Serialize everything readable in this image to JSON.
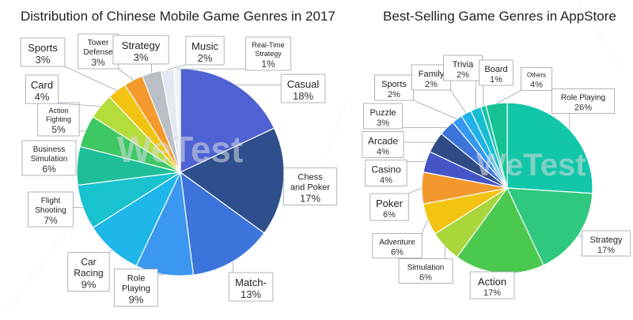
{
  "chart_data": [
    {
      "type": "pie",
      "title": "Distribution of Chinese Mobile Game Genres in 2017",
      "slices": [
        {
          "label": "Casual",
          "value": 18,
          "display": "18%",
          "color": "#4f62d3"
        },
        {
          "label": "Chess and Poker",
          "value": 17,
          "display": "17%",
          "color": "#2e4e8c"
        },
        {
          "label": "Match-",
          "value": 13,
          "display": "13%",
          "color": "#3d74dc"
        },
        {
          "label": "Role Playing",
          "value": 9,
          "display": "9%",
          "color": "#3b97f0"
        },
        {
          "label": "Car Racing",
          "value": 9,
          "display": "9%",
          "color": "#1fb6ea"
        },
        {
          "label": "Flight Shooting",
          "value": 7,
          "display": "7%",
          "color": "#18c2cf"
        },
        {
          "label": "Business Simulation",
          "value": 6,
          "display": "6%",
          "color": "#1ebf98"
        },
        {
          "label": "Action Fighting",
          "value": 5,
          "display": "5%",
          "color": "#3ec863"
        },
        {
          "label": "Card",
          "value": 4,
          "display": "4%",
          "color": "#b4dc3b"
        },
        {
          "label": "Sports",
          "value": 3,
          "display": "3%",
          "color": "#f2c310"
        },
        {
          "label": "Tower Defense",
          "value": 3,
          "display": "3%",
          "color": "#f49a2c"
        },
        {
          "label": "Strategy",
          "value": 3,
          "display": "3%",
          "color": "#b9bfc5"
        },
        {
          "label": "Music",
          "value": 2,
          "display": "2%",
          "color": "#e3e8f2"
        },
        {
          "label": "Real-Time Strategy",
          "value": 1,
          "display": "1%",
          "color": "#eef2f8"
        }
      ]
    },
    {
      "type": "pie",
      "title": "Best-Selling Game Genres in AppStore",
      "slices": [
        {
          "label": "Role Playing",
          "value": 26,
          "display": "26%",
          "color": "#12c6a8"
        },
        {
          "label": "Strategy",
          "value": 17,
          "display": "17%",
          "color": "#2ec87e"
        },
        {
          "label": "Action",
          "value": 17,
          "display": "17%",
          "color": "#4bc94f"
        },
        {
          "label": "Simulation",
          "value": 6,
          "display": "6%",
          "color": "#a8d63b"
        },
        {
          "label": "Adventure",
          "value": 6,
          "display": "6%",
          "color": "#f2c310"
        },
        {
          "label": "Poker",
          "value": 6,
          "display": "6%",
          "color": "#f2982c"
        },
        {
          "label": "Casino",
          "value": 4,
          "display": "4%",
          "color": "#4555c8"
        },
        {
          "label": "Arcade",
          "value": 4,
          "display": "4%",
          "color": "#2f4b86"
        },
        {
          "label": "Puzzle",
          "value": 3,
          "display": "3%",
          "color": "#3c74dc"
        },
        {
          "label": "Sports",
          "value": 2,
          "display": "2%",
          "color": "#3497f0"
        },
        {
          "label": "Family",
          "value": 2,
          "display": "2%",
          "color": "#1fb1e8"
        },
        {
          "label": "Trivia",
          "value": 2,
          "display": "2%",
          "color": "#15bed0"
        },
        {
          "label": "Board",
          "value": 1,
          "display": "1%",
          "color": "#18c4a4"
        },
        {
          "label": "Others",
          "value": 4,
          "display": "4%",
          "color": "#16c294"
        }
      ]
    }
  ],
  "watermark": {
    "text": "WeTest"
  }
}
